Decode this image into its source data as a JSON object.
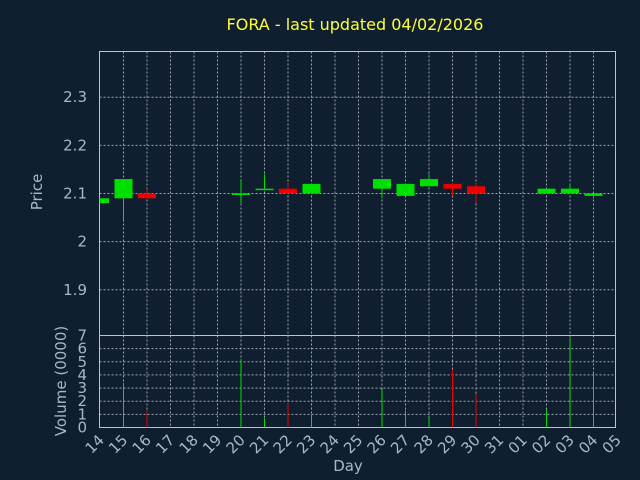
{
  "title": "FORA - last updated 04/02/2026",
  "colors": {
    "up": "#00e000",
    "down": "#ee0000",
    "background": "#0f1f30",
    "title": "#ffff33",
    "text": "#a9b8c8"
  },
  "chart_data": {
    "type": "candlestick",
    "title": "FORA - last updated 04/02/2026",
    "xlabel": "Day",
    "price_ylabel": "Price",
    "volume_ylabel": "Volume (0000)",
    "x_ticks": [
      "14",
      "15",
      "16",
      "17",
      "18",
      "19",
      "20",
      "21",
      "22",
      "23",
      "24",
      "25",
      "26",
      "27",
      "28",
      "29",
      "30",
      "31",
      "01",
      "02",
      "03",
      "04",
      "05"
    ],
    "price_ylim": [
      1.805,
      2.395
    ],
    "price_ticks": [
      {
        "value": 1.9,
        "label": "1.9"
      },
      {
        "value": 2.0,
        "label": "2"
      },
      {
        "value": 2.1,
        "label": "2.1"
      },
      {
        "value": 2.2,
        "label": "2.2"
      },
      {
        "value": 2.3,
        "label": "2.3"
      }
    ],
    "volume_ylim": [
      0,
      7
    ],
    "volume_ticks": [
      {
        "value": 0,
        "label": "0"
      },
      {
        "value": 1,
        "label": "1"
      },
      {
        "value": 2,
        "label": "2"
      },
      {
        "value": 3,
        "label": "3"
      },
      {
        "value": 4,
        "label": "4"
      },
      {
        "value": 5,
        "label": "5"
      },
      {
        "value": 6,
        "label": "6"
      },
      {
        "value": 7,
        "label": "7"
      }
    ],
    "candles": [
      {
        "day": "14",
        "open": 2.08,
        "high": 2.09,
        "low": 2.08,
        "close": 2.09,
        "volume": 0
      },
      {
        "day": "15",
        "open": 2.09,
        "high": 2.13,
        "low": 2.045,
        "close": 2.13,
        "volume": 3.4
      },
      {
        "day": "16",
        "open": 2.1,
        "high": 2.11,
        "low": 2.09,
        "close": 2.09,
        "volume": 1.3
      },
      {
        "day": "20",
        "open": 2.1,
        "high": 2.13,
        "low": 2.08,
        "close": 2.1,
        "volume": 5.2
      },
      {
        "day": "21",
        "open": 2.11,
        "high": 2.14,
        "low": 2.11,
        "close": 2.11,
        "volume": 0.7
      },
      {
        "day": "22",
        "open": 2.11,
        "high": 2.12,
        "low": 2.1,
        "close": 2.1,
        "volume": 1.8
      },
      {
        "day": "23",
        "open": 2.1,
        "high": 2.12,
        "low": 2.1,
        "close": 2.12,
        "volume": 1.0
      },
      {
        "day": "26",
        "open": 2.11,
        "high": 2.13,
        "low": 2.09,
        "close": 2.13,
        "volume": 2.9
      },
      {
        "day": "27",
        "open": 2.095,
        "high": 2.12,
        "low": 2.095,
        "close": 2.12,
        "volume": 1.3
      },
      {
        "day": "28",
        "open": 2.115,
        "high": 2.14,
        "low": 2.115,
        "close": 2.13,
        "volume": 0.8
      },
      {
        "day": "29",
        "open": 2.12,
        "high": 2.12,
        "low": 2.095,
        "close": 2.11,
        "volume": 4.4
      },
      {
        "day": "30",
        "open": 2.115,
        "high": 2.12,
        "low": 2.08,
        "close": 2.1,
        "volume": 2.6
      },
      {
        "day": "02",
        "open": 2.1,
        "high": 2.11,
        "low": 2.1,
        "close": 2.11,
        "volume": 1.4
      },
      {
        "day": "03",
        "open": 2.1,
        "high": 2.12,
        "low": 2.1,
        "close": 2.11,
        "volume": 6.8
      },
      {
        "day": "04",
        "open": 2.095,
        "high": 2.1,
        "low": 2.09,
        "close": 2.1,
        "volume": 4.1
      }
    ]
  }
}
